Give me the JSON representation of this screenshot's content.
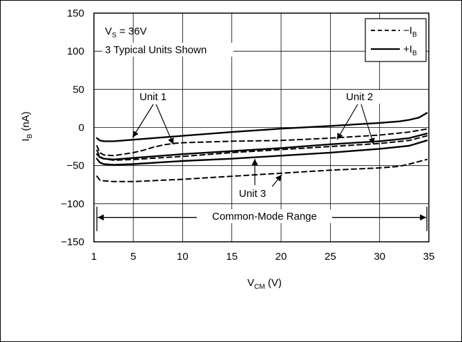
{
  "chart_data": {
    "type": "line",
    "xlabel": {
      "main": "V",
      "sub": "CM",
      "unit": " (V)"
    },
    "ylabel": {
      "main": "I",
      "sub": "B",
      "unit": " (nA)"
    },
    "xlim": [
      1,
      35
    ],
    "ylim": [
      -150,
      150
    ],
    "xticks": [
      1,
      5,
      10,
      15,
      20,
      25,
      30,
      35
    ],
    "yticks": [
      150,
      100,
      50,
      0,
      -50,
      -100,
      -150
    ],
    "grid": true,
    "condition": {
      "main": "V",
      "sub": "S",
      "rest": " = 36V"
    },
    "subtitle": "3 Typical Units Shown",
    "legend": {
      "position": "top-right",
      "entries": [
        {
          "sign": "−I",
          "sub": "B",
          "style": "dashed"
        },
        {
          "sign": "+I",
          "sub": "B",
          "style": "solid"
        }
      ]
    },
    "series": [
      {
        "unit": "Unit 1",
        "type": "+IB",
        "style": "solid",
        "x": [
          1.3,
          1.6,
          2,
          3,
          4,
          5,
          10,
          15,
          20,
          25,
          30,
          32,
          33,
          34,
          34.8
        ],
        "y": [
          -14,
          -17,
          -18,
          -18,
          -17,
          -16,
          -11,
          -6,
          -1.5,
          2,
          6,
          8,
          10,
          13,
          19
        ]
      },
      {
        "unit": "Unit 1",
        "type": "-IB",
        "style": "dashed",
        "x": [
          1.3,
          1.6,
          2,
          3,
          4,
          5,
          6,
          7,
          8,
          9,
          10,
          15,
          20,
          25,
          30,
          33,
          34.8
        ],
        "y": [
          -24,
          -33,
          -36,
          -37,
          -35,
          -33,
          -30,
          -26,
          -23,
          -21,
          -20,
          -18,
          -17,
          -14,
          -10,
          -6,
          -2
        ]
      },
      {
        "unit": "Unit 2",
        "type": "+IB",
        "style": "solid",
        "x": [
          1.3,
          1.6,
          2,
          3,
          5,
          10,
          15,
          20,
          25,
          30,
          33,
          34.8
        ],
        "y": [
          -35,
          -39,
          -41,
          -42,
          -40,
          -35,
          -31,
          -27,
          -22,
          -18,
          -14,
          -8
        ]
      },
      {
        "unit": "Unit 2",
        "type": "-IB",
        "style": "dashed",
        "x": [
          1.3,
          1.6,
          2,
          3,
          5,
          10,
          15,
          20,
          25,
          30,
          33,
          34.8
        ],
        "y": [
          -30,
          -38,
          -41,
          -43,
          -42,
          -38,
          -33,
          -29,
          -25,
          -21,
          -17,
          -11
        ]
      },
      {
        "unit": "Unit 3",
        "type": "+IB",
        "style": "solid",
        "x": [
          1.3,
          1.6,
          2,
          3,
          5,
          10,
          15,
          20,
          25,
          30,
          33,
          34.8
        ],
        "y": [
          -41,
          -46,
          -48,
          -49,
          -48,
          -44,
          -41,
          -37,
          -33,
          -28,
          -24,
          -17
        ]
      },
      {
        "unit": "Unit 3",
        "type": "-IB",
        "style": "dashed",
        "x": [
          1.3,
          1.6,
          2,
          3,
          5,
          10,
          15,
          20,
          25,
          30,
          32,
          33,
          34.8
        ],
        "y": [
          -64,
          -69,
          -70,
          -71,
          -71,
          -68,
          -64,
          -60,
          -56,
          -53,
          -51,
          -48,
          -42
        ]
      }
    ],
    "annotations": [
      {
        "text": "Unit 1"
      },
      {
        "text": "Unit 2"
      },
      {
        "text": "Unit 3"
      },
      {
        "text": "Common-Mode Range",
        "from_x": 1.3,
        "to_x": 34.8
      }
    ]
  }
}
